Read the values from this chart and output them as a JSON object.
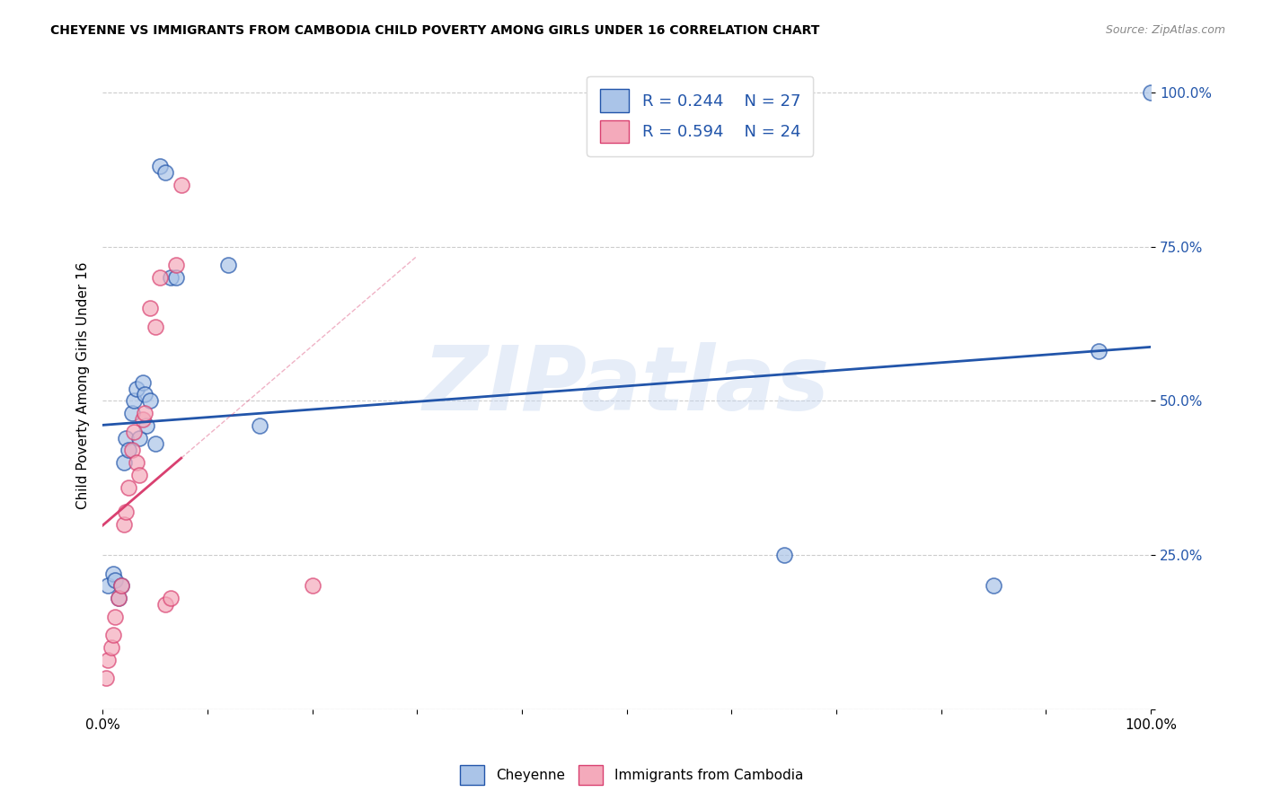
{
  "title": "CHEYENNE VS IMMIGRANTS FROM CAMBODIA CHILD POVERTY AMONG GIRLS UNDER 16 CORRELATION CHART",
  "source": "Source: ZipAtlas.com",
  "ylabel": "Child Poverty Among Girls Under 16",
  "watermark": "ZIPatlas",
  "cheyenne_R": 0.244,
  "cheyenne_N": 27,
  "cambodia_R": 0.594,
  "cambodia_N": 24,
  "cheyenne_color": "#aac4e8",
  "cambodia_color": "#f4aabb",
  "cheyenne_line_color": "#2255aa",
  "cambodia_line_color": "#d94070",
  "cheyenne_x": [
    0.5,
    1.0,
    1.2,
    1.5,
    1.8,
    2.0,
    2.2,
    2.5,
    2.8,
    3.0,
    3.2,
    3.5,
    3.8,
    4.0,
    4.2,
    4.5,
    5.0,
    5.5,
    6.0,
    6.5,
    7.0,
    12.0,
    15.0,
    65.0,
    85.0,
    100.0,
    100.0
  ],
  "cheyenne_y": [
    0.2,
    0.22,
    0.21,
    0.18,
    0.2,
    0.4,
    0.44,
    0.42,
    0.48,
    0.5,
    0.52,
    0.44,
    0.53,
    0.51,
    0.46,
    0.5,
    0.43,
    0.88,
    0.87,
    0.7,
    0.7,
    0.72,
    0.46,
    0.25,
    0.2,
    0.58,
    1.0
  ],
  "cambodia_x": [
    0.3,
    0.5,
    0.8,
    1.0,
    1.2,
    1.5,
    1.8,
    2.0,
    2.2,
    2.5,
    2.8,
    3.0,
    3.2,
    3.5,
    3.8,
    4.0,
    4.5,
    5.0,
    5.5,
    6.0,
    6.5,
    7.0,
    7.5,
    20.0
  ],
  "cambodia_y": [
    0.05,
    0.08,
    0.1,
    0.12,
    0.15,
    0.18,
    0.2,
    0.3,
    0.32,
    0.36,
    0.42,
    0.45,
    0.4,
    0.38,
    0.47,
    0.48,
    0.65,
    0.62,
    0.7,
    0.17,
    0.18,
    0.72,
    0.85,
    0.2
  ],
  "xlim": [
    0.0,
    100.0
  ],
  "ylim": [
    0.0,
    1.05
  ],
  "xtick_positions": [
    0.0,
    10.0,
    20.0,
    30.0,
    40.0,
    50.0,
    60.0,
    70.0,
    80.0,
    90.0,
    100.0
  ],
  "xticklabels": [
    "0.0%",
    "",
    "",
    "",
    "",
    "",
    "",
    "",
    "",
    "",
    "100.0%"
  ],
  "ytick_positions": [
    0.0,
    0.25,
    0.5,
    0.75,
    1.0
  ],
  "yticklabels_right": [
    "",
    "25.0%",
    "50.0%",
    "75.0%",
    "100.0%"
  ],
  "grid_color": "#cccccc",
  "background_color": "#ffffff",
  "watermark_color": "#c8d8f0"
}
